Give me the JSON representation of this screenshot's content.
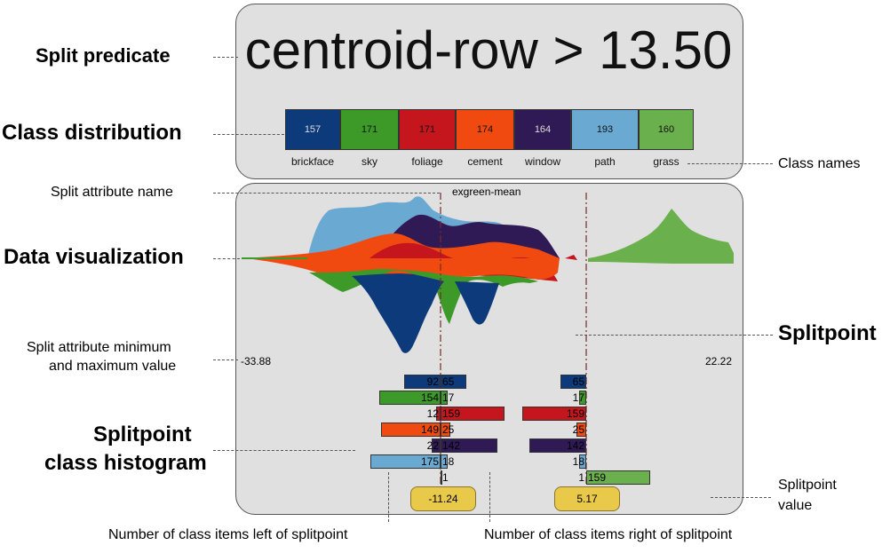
{
  "labels": {
    "split_predicate": "Split predicate",
    "class_distribution": "Class distribution",
    "split_attribute_name": "Split attribute name",
    "data_visualization": "Data visualization",
    "split_attr_minmax_line1": "Split attribute minimum",
    "split_attr_minmax_line2": "and maximum value",
    "splitpoint_hist_line1": "Splitpoint",
    "splitpoint_hist_line2": "class histogram",
    "class_names": "Class names",
    "splitpoint": "Splitpoint",
    "splitpoint_value_line1": "Splitpoint",
    "splitpoint_value_line2": "value",
    "left_items": "Number of class items left of splitpoint",
    "right_items": "Number of class items right of splitpoint"
  },
  "predicate": "centroid-row > 13.50",
  "attribute": "exgreen-mean",
  "min_value": "-33.88",
  "max_value": "22.22",
  "classes": [
    {
      "name": "brickface",
      "count": "157",
      "color": "#0d3a7a"
    },
    {
      "name": "sky",
      "count": "171",
      "color": "#3d9a28"
    },
    {
      "name": "foliage",
      "count": "171",
      "color": "#c4161c"
    },
    {
      "name": "cement",
      "count": "174",
      "color": "#f04a10"
    },
    {
      "name": "window",
      "count": "164",
      "color": "#2f1a55"
    },
    {
      "name": "path",
      "count": "193",
      "color": "#6aa9d2"
    },
    {
      "name": "grass",
      "count": "160",
      "color": "#6ab04c"
    }
  ],
  "histograms": [
    {
      "splitpoint_value": "-11.24",
      "rows": [
        {
          "left": "92",
          "right": "65"
        },
        {
          "left": "154",
          "right": "17"
        },
        {
          "left": "12",
          "right": "159"
        },
        {
          "left": "149",
          "right": "25"
        },
        {
          "left": "22",
          "right": "142"
        },
        {
          "left": "175",
          "right": "18"
        },
        {
          "left": "",
          "right": "1"
        }
      ]
    },
    {
      "splitpoint_value": "5.17",
      "rows": [
        {
          "left": "65",
          "right": ""
        },
        {
          "left": "17",
          "right": ""
        },
        {
          "left": "159",
          "right": ""
        },
        {
          "left": "25",
          "right": ""
        },
        {
          "left": "142",
          "right": ""
        },
        {
          "left": "18",
          "right": ""
        },
        {
          "left": "1",
          "right": "159"
        }
      ]
    }
  ]
}
